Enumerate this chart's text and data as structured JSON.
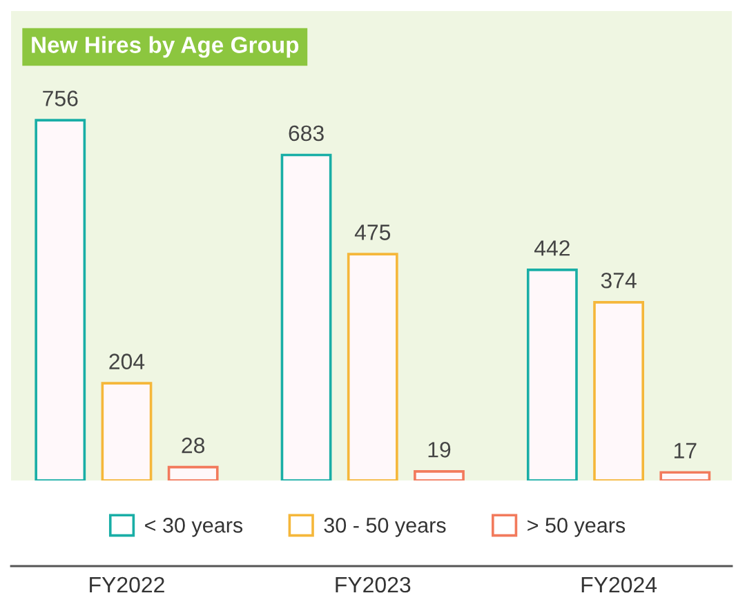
{
  "chart_data": {
    "type": "bar",
    "title": "New Hires by Age Group",
    "categories": [
      "FY2022",
      "FY2023",
      "FY2024"
    ],
    "series": [
      {
        "name": "< 30 years",
        "color": "#19aea6",
        "values": [
          756,
          683,
          442
        ]
      },
      {
        "name": "30 - 50 years",
        "color": "#f5b73a",
        "values": [
          204,
          475,
          374
        ]
      },
      {
        "name": "> 50 years",
        "color": "#f27a5c",
        "values": [
          28,
          19,
          17
        ]
      }
    ],
    "data_labels": true,
    "legend": "bottom",
    "grid": false
  }
}
